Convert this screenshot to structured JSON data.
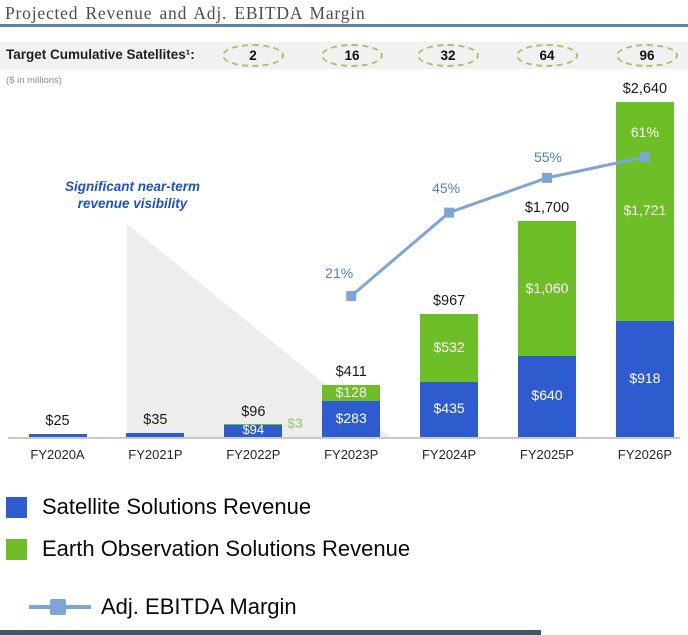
{
  "header": {
    "title": "Projected Revenue and Adj. EBITDA Margin"
  },
  "satellites_banner": {
    "label": "Target Cumulative Satellites¹:",
    "values": [
      "2",
      "16",
      "32",
      "64",
      "96"
    ]
  },
  "units_note": "($ in millions)",
  "annotation": {
    "line1": "Significant near-term",
    "line2": "revenue visibility"
  },
  "colors": {
    "satellite_blue": "#2e5cce",
    "earth_green": "#6ebe28",
    "margin_line": "#7ea6d4",
    "pct_label_blue": "#4e81bd",
    "side_label_green": "#a9d08d",
    "footer_bar": "#44546a"
  },
  "chart_data": {
    "type": "combo: stacked-bar + line",
    "units": "$ in millions",
    "categories": [
      "FY2020A",
      "FY2021P",
      "FY2022P",
      "FY2023P",
      "FY2024P",
      "FY2025P",
      "FY2026P"
    ],
    "series": [
      {
        "name": "Satellite Solutions Revenue",
        "type": "bar",
        "values": [
          25,
          35,
          94,
          283,
          435,
          640,
          918
        ]
      },
      {
        "name": "Earth Observation Solutions Revenue",
        "type": "bar",
        "values": [
          0,
          0,
          3,
          128,
          532,
          1060,
          1721
        ]
      },
      {
        "name": "Adj. EBITDA Margin",
        "type": "line",
        "values": [
          null,
          null,
          null,
          21,
          45,
          55,
          61
        ]
      }
    ],
    "totals": [
      25,
      35,
      96,
      411,
      967,
      1700,
      2640
    ],
    "total_labels": [
      "$25",
      "$35",
      "$96",
      "$411",
      "$967",
      "$1,700",
      "$2,640"
    ],
    "segment_labels": {
      "satellite": [
        null,
        null,
        "$94",
        "$283",
        "$435",
        "$640",
        "$918"
      ],
      "earth_observation": [
        null,
        null,
        "$3",
        "$128",
        "$532",
        "$1,060",
        "$1,721"
      ]
    },
    "pct_labels": [
      null,
      null,
      null,
      "21%",
      "45%",
      "55%",
      "61%"
    ],
    "target_cumulative_satellites": [
      null,
      null,
      2,
      16,
      32,
      64,
      96
    ],
    "value_axis": {
      "visible": false,
      "min": 0,
      "implied_max": 2700
    },
    "grid": false,
    "legend_position": "bottom-left"
  },
  "legend": {
    "items": [
      {
        "label": "Satellite Solutions Revenue",
        "marker": "square"
      },
      {
        "label": "Earth Observation Solutions Revenue",
        "marker": "square"
      },
      {
        "label": "Adj. EBITDA Margin",
        "marker": "line-with-square"
      }
    ]
  }
}
